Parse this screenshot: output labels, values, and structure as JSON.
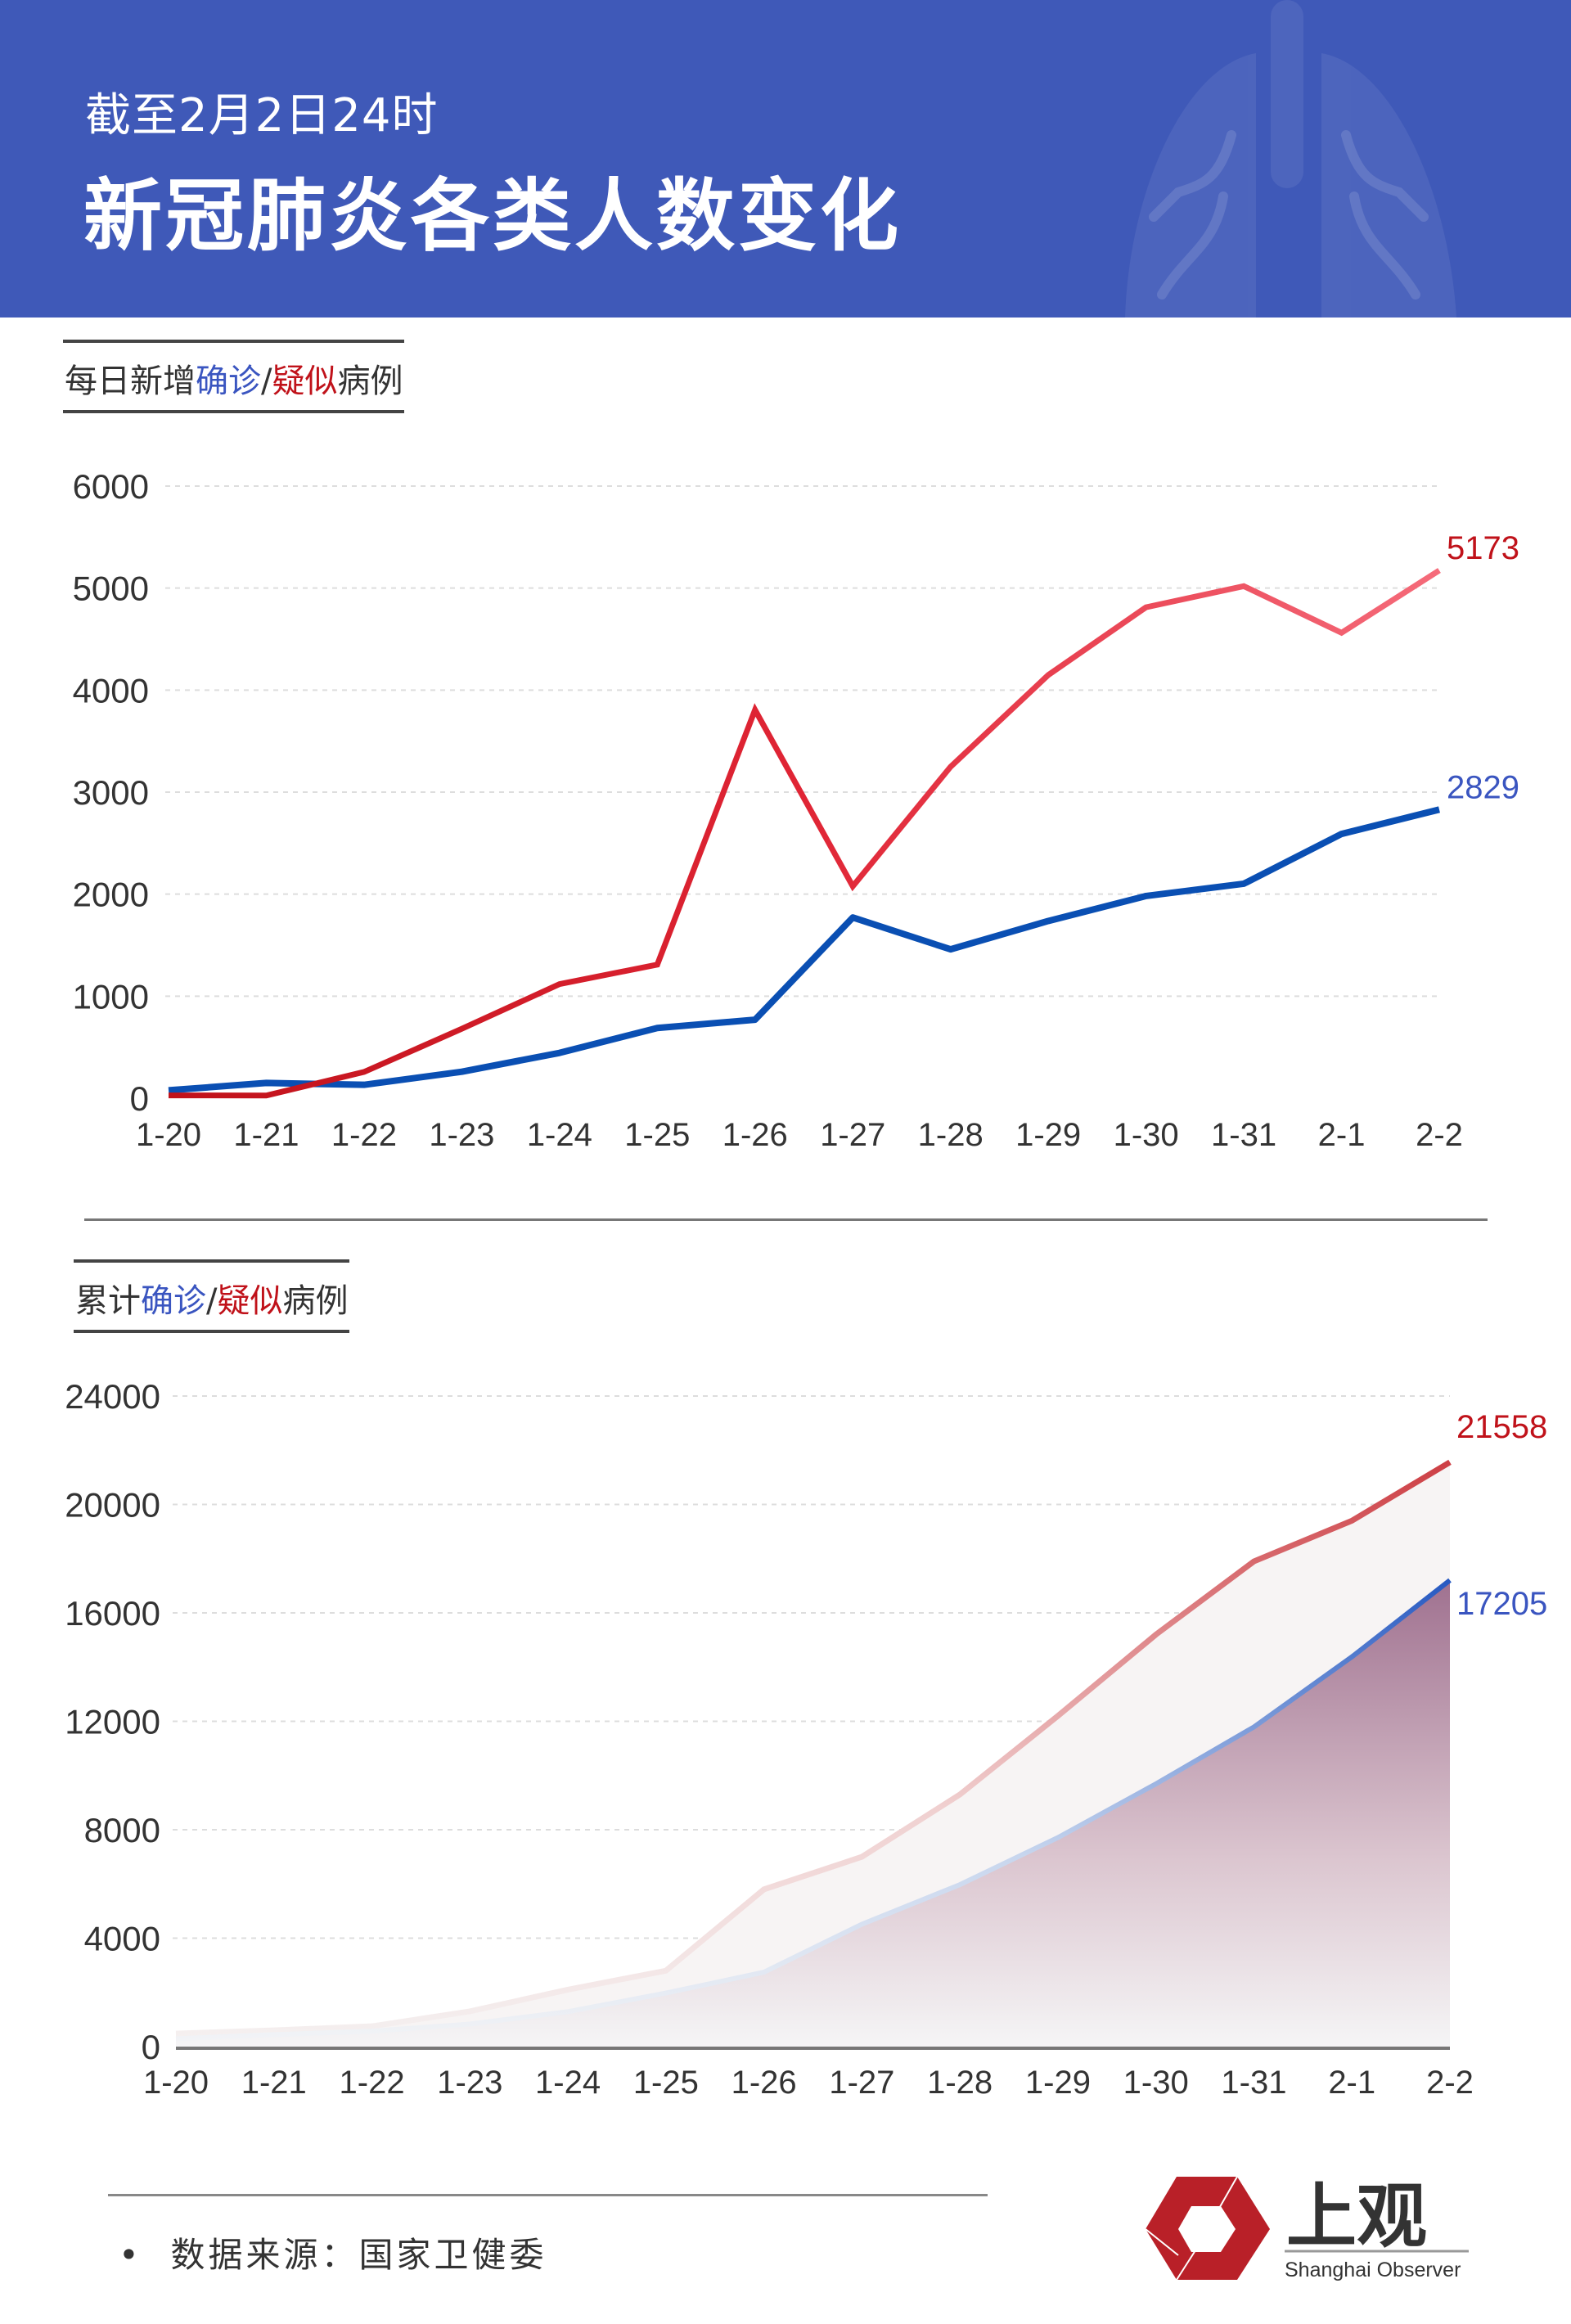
{
  "header": {
    "subtitle": "截至2月2日24时",
    "title": "新冠肺炎各类人数变化",
    "background_color": "#3f59b8",
    "decoration_icon": "lungs-icon"
  },
  "sections": [
    {
      "label_parts": [
        {
          "text": "每日新增",
          "color": "default"
        },
        {
          "text": "确诊",
          "color": "blue"
        },
        {
          "text": "/",
          "color": "default"
        },
        {
          "text": "疑似",
          "color": "red"
        },
        {
          "text": "病例",
          "color": "default"
        }
      ]
    },
    {
      "label_parts": [
        {
          "text": "累计",
          "color": "default"
        },
        {
          "text": "确诊",
          "color": "blue"
        },
        {
          "text": "/",
          "color": "default"
        },
        {
          "text": "疑似",
          "color": "red"
        },
        {
          "text": "病例",
          "color": "default"
        }
      ]
    }
  ],
  "chart_data": [
    {
      "type": "line",
      "title": "每日新增确诊/疑似病例",
      "categories": [
        "1-20",
        "1-21",
        "1-22",
        "1-23",
        "1-24",
        "1-25",
        "1-26",
        "1-27",
        "1-28",
        "1-29",
        "1-30",
        "1-31",
        "2-1",
        "2-2"
      ],
      "yticks": [
        "0",
        "1000",
        "2000",
        "3000",
        "4000",
        "5000",
        "6000"
      ],
      "ylim": [
        0,
        6000
      ],
      "grid": true,
      "series": [
        {
          "name": "确诊",
          "color": "#0a4fb3",
          "values": [
            77,
            149,
            131,
            259,
            444,
            688,
            769,
            1771,
            1459,
            1737,
            1982,
            2102,
            2590,
            2829
          ],
          "end_label": "2829",
          "label_color": "#3a55c0"
        },
        {
          "name": "疑似",
          "color_start": "#c0121a",
          "color_end": "#f56b7a",
          "values": [
            27,
            26,
            257,
            680,
            1118,
            1309,
            3806,
            2077,
            3248,
            4148,
            4812,
            5019,
            4562,
            5173
          ],
          "end_label": "5173",
          "label_color": "#c0121a"
        }
      ]
    },
    {
      "type": "area",
      "title": "累计确诊/疑似病例",
      "categories": [
        "1-20",
        "1-21",
        "1-22",
        "1-23",
        "1-24",
        "1-25",
        "1-26",
        "1-27",
        "1-28",
        "1-29",
        "1-30",
        "1-31",
        "2-1",
        "2-2"
      ],
      "yticks": [
        "0",
        "4000",
        "8000",
        "12000",
        "16000",
        "20000",
        "24000"
      ],
      "ylim": [
        0,
        24000
      ],
      "grid": true,
      "series": [
        {
          "name": "疑似",
          "color": "#d04048",
          "values": [
            480,
            600,
            750,
            1300,
            2100,
            2800,
            5800,
            7000,
            9300,
            12200,
            15200,
            17900,
            19400,
            21558
          ],
          "end_label": "21558",
          "label_color": "#c0121a"
        },
        {
          "name": "确诊",
          "color": "#2a5cc0",
          "values": [
            291,
            440,
            571,
            830,
            1287,
            1975,
            2744,
            4515,
            5974,
            7711,
            9692,
            11791,
            14380,
            17205
          ],
          "end_label": "17205",
          "label_color": "#3a55c0"
        }
      ]
    }
  ],
  "footer": {
    "bullet": "•",
    "source": "数据来源：国家卫健委",
    "logo_text": "上观",
    "logo_subtext": "Shanghai Observer",
    "logo_color": "#b92028"
  }
}
